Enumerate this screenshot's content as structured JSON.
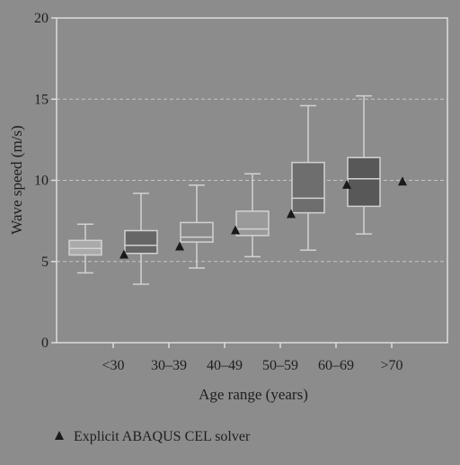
{
  "chart_data": {
    "type": "box",
    "xlabel": "Age range (years)",
    "ylabel": "Wave speed (m/s)",
    "ylim": [
      0,
      20
    ],
    "yticks": [
      0,
      5,
      10,
      15,
      20
    ],
    "grid": "horizontal-dashed",
    "categories": [
      "<30",
      "30–39",
      "40–49",
      "50–59",
      "60–69",
      ">70"
    ],
    "boxes": [
      {
        "category": "<30",
        "min": 4.3,
        "q1": 5.4,
        "median": 5.8,
        "q3": 6.3,
        "max": 7.3
      },
      {
        "category": "30–39",
        "min": 3.6,
        "q1": 5.5,
        "median": 6.0,
        "q3": 6.9,
        "max": 9.2
      },
      {
        "category": "40–49",
        "min": 4.6,
        "q1": 6.2,
        "median": 6.5,
        "q3": 7.4,
        "max": 9.7
      },
      {
        "category": "50–59",
        "min": 5.3,
        "q1": 6.6,
        "median": 7.0,
        "q3": 8.1,
        "max": 10.4
      },
      {
        "category": "60–69",
        "min": 5.7,
        "q1": 8.0,
        "median": 8.9,
        "q3": 11.1,
        "max": 14.6
      },
      {
        "category": ">70",
        "min": 6.7,
        "q1": 8.4,
        "median": 10.1,
        "q3": 11.4,
        "max": 15.2
      }
    ],
    "markers": {
      "name": "Explicit ABAQUS CEL solver",
      "symbol": "triangle",
      "values": [
        5.4,
        5.9,
        6.9,
        7.9,
        9.7,
        9.9
      ]
    },
    "legend": {
      "placement": "bottom-left",
      "label": "Explicit ABAQUS CEL solver"
    },
    "colors": {
      "background": "#8c8c8c",
      "ink": "#1e1e1e",
      "grid": "#c6c6c6",
      "axis": "#dcdcdc",
      "box_fill": [
        "#aaaaaa",
        "#666666",
        "#8a8a8a",
        "#9a9a9a",
        "#6e6e6e",
        "#585858"
      ],
      "box_edge": "#d2d2d2",
      "whisker": "#d2d2d2",
      "marker": "#1a1a1a"
    }
  }
}
